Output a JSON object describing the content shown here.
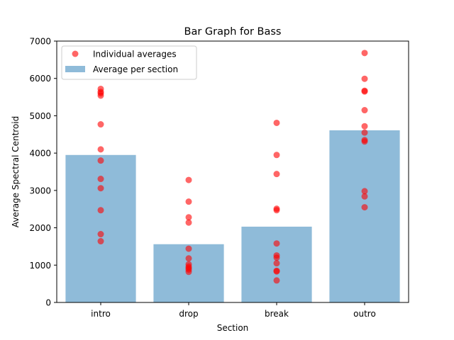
{
  "chart_data": {
    "type": "bar",
    "title": "Bar Graph for Bass",
    "xlabel": "Section",
    "ylabel": "Average Spectral Centroid",
    "categories": [
      "intro",
      "drop",
      "break",
      "outro"
    ],
    "ylim": [
      0,
      7000
    ],
    "yticks": [
      0,
      1000,
      2000,
      3000,
      4000,
      5000,
      6000,
      7000
    ],
    "grid": false,
    "legend_position": "top-left",
    "series": [
      {
        "name": "Average per section",
        "kind": "bar",
        "color": "#8fbbd9",
        "values": [
          3950,
          1560,
          2030,
          4610
        ]
      },
      {
        "name": "Individual averages",
        "kind": "scatter",
        "color": "#ff0000",
        "points": [
          {
            "x": "intro",
            "y": 5720
          },
          {
            "x": "intro",
            "y": 5640
          },
          {
            "x": "intro",
            "y": 5600
          },
          {
            "x": "intro",
            "y": 5540
          },
          {
            "x": "intro",
            "y": 4770
          },
          {
            "x": "intro",
            "y": 4100
          },
          {
            "x": "intro",
            "y": 3800
          },
          {
            "x": "intro",
            "y": 3310
          },
          {
            "x": "intro",
            "y": 3060
          },
          {
            "x": "intro",
            "y": 2470
          },
          {
            "x": "intro",
            "y": 1830
          },
          {
            "x": "intro",
            "y": 1640
          },
          {
            "x": "drop",
            "y": 3280
          },
          {
            "x": "drop",
            "y": 2700
          },
          {
            "x": "drop",
            "y": 2280
          },
          {
            "x": "drop",
            "y": 2140
          },
          {
            "x": "drop",
            "y": 1440
          },
          {
            "x": "drop",
            "y": 1180
          },
          {
            "x": "drop",
            "y": 1020
          },
          {
            "x": "drop",
            "y": 960
          },
          {
            "x": "drop",
            "y": 920
          },
          {
            "x": "drop",
            "y": 880
          },
          {
            "x": "drop",
            "y": 820
          },
          {
            "x": "break",
            "y": 4810
          },
          {
            "x": "break",
            "y": 3950
          },
          {
            "x": "break",
            "y": 3440
          },
          {
            "x": "break",
            "y": 2510
          },
          {
            "x": "break",
            "y": 2470
          },
          {
            "x": "break",
            "y": 1580
          },
          {
            "x": "break",
            "y": 1260
          },
          {
            "x": "break",
            "y": 1200
          },
          {
            "x": "break",
            "y": 1050
          },
          {
            "x": "break",
            "y": 850
          },
          {
            "x": "break",
            "y": 830
          },
          {
            "x": "break",
            "y": 590
          },
          {
            "x": "outro",
            "y": 6680
          },
          {
            "x": "outro",
            "y": 5990
          },
          {
            "x": "outro",
            "y": 5670
          },
          {
            "x": "outro",
            "y": 5650
          },
          {
            "x": "outro",
            "y": 5150
          },
          {
            "x": "outro",
            "y": 4720
          },
          {
            "x": "outro",
            "y": 4550
          },
          {
            "x": "outro",
            "y": 4350
          },
          {
            "x": "outro",
            "y": 4310
          },
          {
            "x": "outro",
            "y": 2980
          },
          {
            "x": "outro",
            "y": 2840
          },
          {
            "x": "outro",
            "y": 2550
          }
        ]
      }
    ]
  }
}
